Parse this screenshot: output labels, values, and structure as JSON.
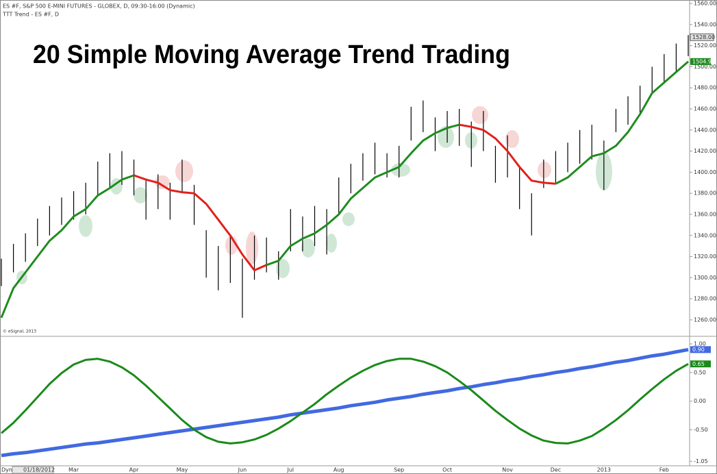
{
  "chart_data": [
    {
      "type": "hilo",
      "title": "20 Simple Moving Average Trend Trading",
      "subtitle": "ES #F, S&P 500 E-MINI FUTURES - GLOBEX, D, 09:30-16:00 (Dynamic)",
      "annotations": [
        "TTT Trend - ES #F, D",
        "© eSignal, 2013",
        "Dyn"
      ],
      "categories": [
        "01/18/2012",
        null,
        null,
        null,
        null,
        null,
        "Mar",
        null,
        null,
        null,
        null,
        "Apr",
        null,
        null,
        null,
        "May",
        null,
        null,
        null,
        null,
        "Jun",
        null,
        null,
        null,
        "Jul",
        null,
        null,
        null,
        "Aug",
        null,
        null,
        null,
        null,
        "Sep",
        null,
        null,
        null,
        "Oct",
        null,
        null,
        null,
        null,
        "Nov",
        null,
        null,
        null,
        "Dec",
        null,
        null,
        null,
        "2013",
        null,
        null,
        null,
        null,
        "Feb",
        null,
        null
      ],
      "color": "#000000",
      "high": [
        1318,
        1332,
        1342,
        1356,
        1368,
        1376,
        1382,
        1390,
        1410,
        1418,
        1420,
        1412,
        1392,
        1398,
        1390,
        1412,
        1388,
        1345,
        1330,
        1340,
        1318,
        1340,
        1338,
        1325,
        1365,
        1358,
        1368,
        1365,
        1395,
        1408,
        1418,
        1428,
        1418,
        1425,
        1462,
        1468,
        1452,
        1458,
        1460,
        1448,
        1458,
        1425,
        1435,
        1405,
        1380,
        1412,
        1420,
        1428,
        1440,
        1445,
        1430,
        1460,
        1472,
        1482,
        1500,
        1512,
        1522,
        1530
      ],
      "low": [
        1292,
        1305,
        1315,
        1330,
        1340,
        1350,
        1355,
        1360,
        1378,
        1385,
        1388,
        1378,
        1355,
        1365,
        1355,
        1380,
        1350,
        1300,
        1288,
        1295,
        1262,
        1298,
        1305,
        1298,
        1325,
        1325,
        1330,
        1322,
        1360,
        1380,
        1392,
        1398,
        1395,
        1395,
        1430,
        1438,
        1420,
        1428,
        1425,
        1405,
        1420,
        1390,
        1395,
        1365,
        1340,
        1385,
        1390,
        1400,
        1408,
        1412,
        1383,
        1438,
        1445,
        1455,
        1475,
        1485,
        1495,
        1510
      ],
      "last_price": {
        "value": 1528,
        "label": "1528.00"
      },
      "series": [
        {
          "color": "#1e8c1e",
          "values": [
            1262,
            1290,
            1305,
            1320,
            1335,
            1345,
            1358,
            1365,
            1378,
            1385,
            1393,
            1397,
            null,
            null,
            null,
            null,
            null,
            null,
            null,
            null,
            null,
            null,
            1312,
            1316,
            1330,
            1337,
            1342,
            1350,
            1360,
            1375,
            1385,
            1395,
            1400,
            1405,
            1418,
            1430,
            1437,
            1442,
            1445,
            null,
            null,
            null,
            null,
            null,
            null,
            null,
            1389,
            1395,
            1405,
            1415,
            1418,
            1425,
            1438,
            1455,
            1475,
            1485,
            1495,
            1504.93
          ],
          "value_labels": [
            null,
            null,
            null,
            null,
            null,
            null,
            null,
            null,
            null,
            null,
            null,
            null,
            null,
            null,
            null,
            null,
            null,
            null,
            null,
            null,
            null,
            null,
            null,
            null,
            null,
            null,
            null,
            null,
            null,
            null,
            null,
            null,
            null,
            null,
            null,
            null,
            null,
            null,
            null,
            null,
            null,
            null,
            null,
            null,
            null,
            null,
            null,
            null,
            null,
            null,
            null,
            null,
            null,
            null,
            null,
            null,
            null,
            "1504.93"
          ]
        },
        {
          "color": "#e0211b",
          "values": [
            null,
            null,
            null,
            null,
            null,
            null,
            null,
            null,
            null,
            null,
            null,
            1397,
            1393,
            1390,
            1383,
            1381,
            1380,
            1370,
            1355,
            1340,
            1322,
            1307,
            1312,
            null,
            null,
            null,
            null,
            null,
            null,
            null,
            null,
            null,
            null,
            null,
            null,
            null,
            null,
            null,
            1445,
            1443,
            1440,
            1432,
            1420,
            1405,
            1392,
            1390,
            1389,
            null,
            null,
            null,
            null,
            null,
            null,
            null,
            null,
            null,
            null,
            null
          ]
        }
      ],
      "ylim": [
        1245,
        1562
      ],
      "yticks": [
        {
          "value": 1260,
          "label": "1260.00"
        },
        {
          "value": 1280,
          "label": "1280.00"
        },
        {
          "value": 1300,
          "label": "1300.00"
        },
        {
          "value": 1320,
          "label": "1320.00"
        },
        {
          "value": 1340,
          "label": "1340.00"
        },
        {
          "value": 1360,
          "label": "1360.00"
        },
        {
          "value": 1380,
          "label": "1380.00"
        },
        {
          "value": 1400,
          "label": "1400.00"
        },
        {
          "value": 1420,
          "label": "1420.00"
        },
        {
          "value": 1440,
          "label": "1440.00"
        },
        {
          "value": 1460,
          "label": "1460.00"
        },
        {
          "value": 1480,
          "label": "1480.00"
        },
        {
          "value": 1500,
          "label": "1500.00"
        },
        {
          "value": 1520,
          "label": "1520.00"
        },
        {
          "value": 1540,
          "label": "1540.00"
        },
        {
          "value": 1560,
          "label": "1560.00"
        }
      ]
    },
    {
      "type": "line",
      "series": [
        {
          "color": "#4169e1",
          "values": [
            -0.95,
            -0.92,
            -0.9,
            -0.87,
            -0.84,
            -0.81,
            -0.78,
            -0.75,
            -0.73,
            -0.7,
            -0.67,
            -0.64,
            -0.61,
            -0.58,
            -0.55,
            -0.52,
            -0.49,
            -0.46,
            -0.43,
            -0.4,
            -0.37,
            -0.34,
            -0.31,
            -0.28,
            -0.24,
            -0.21,
            -0.18,
            -0.15,
            -0.12,
            -0.08,
            -0.05,
            -0.02,
            0.02,
            0.05,
            0.08,
            0.12,
            0.15,
            0.18,
            0.22,
            0.25,
            0.29,
            0.32,
            0.36,
            0.39,
            0.43,
            0.46,
            0.5,
            0.53,
            0.57,
            0.6,
            0.64,
            0.68,
            0.71,
            0.75,
            0.79,
            0.82,
            0.86,
            0.9
          ],
          "value_labels": [
            null,
            null,
            null,
            null,
            null,
            null,
            null,
            null,
            null,
            null,
            null,
            null,
            null,
            null,
            null,
            null,
            null,
            null,
            null,
            null,
            null,
            null,
            null,
            null,
            null,
            null,
            null,
            null,
            null,
            null,
            null,
            null,
            null,
            null,
            null,
            null,
            null,
            null,
            null,
            null,
            null,
            null,
            null,
            null,
            null,
            null,
            null,
            null,
            null,
            null,
            null,
            null,
            null,
            null,
            null,
            null,
            null,
            "0.90"
          ]
        },
        {
          "color": "#1a8a1a",
          "values": [
            -0.56,
            -0.38,
            -0.16,
            0.07,
            0.3,
            0.49,
            0.64,
            0.72,
            0.74,
            0.69,
            0.59,
            0.45,
            0.27,
            0.07,
            -0.13,
            -0.33,
            -0.5,
            -0.63,
            -0.71,
            -0.74,
            -0.72,
            -0.67,
            -0.59,
            -0.48,
            -0.35,
            -0.2,
            -0.05,
            0.12,
            0.27,
            0.41,
            0.53,
            0.63,
            0.7,
            0.74,
            0.74,
            0.69,
            0.61,
            0.5,
            0.35,
            0.19,
            0.01,
            -0.17,
            -0.33,
            -0.48,
            -0.6,
            -0.69,
            -0.73,
            -0.74,
            -0.69,
            -0.61,
            -0.48,
            -0.33,
            -0.16,
            0.03,
            0.21,
            0.38,
            0.53,
            0.65
          ],
          "value_labels": [
            null,
            null,
            null,
            null,
            null,
            null,
            null,
            null,
            null,
            null,
            null,
            null,
            null,
            null,
            null,
            null,
            null,
            null,
            null,
            null,
            null,
            null,
            null,
            null,
            null,
            null,
            null,
            null,
            null,
            null,
            null,
            null,
            null,
            null,
            null,
            null,
            null,
            null,
            null,
            null,
            null,
            null,
            null,
            null,
            null,
            null,
            null,
            null,
            null,
            null,
            null,
            null,
            null,
            null,
            null,
            null,
            null,
            "0.65"
          ]
        }
      ],
      "ylim": [
        -1.13,
        1.12
      ],
      "yticks": [
        {
          "value": 1,
          "label": "1.00"
        },
        {
          "value": 0.5,
          "label": "0.50"
        },
        {
          "value": 0,
          "label": "0.00"
        },
        {
          "value": -0.5,
          "label": "-0.50"
        },
        {
          "value": -1.05,
          "label": "-1.05"
        }
      ]
    }
  ]
}
